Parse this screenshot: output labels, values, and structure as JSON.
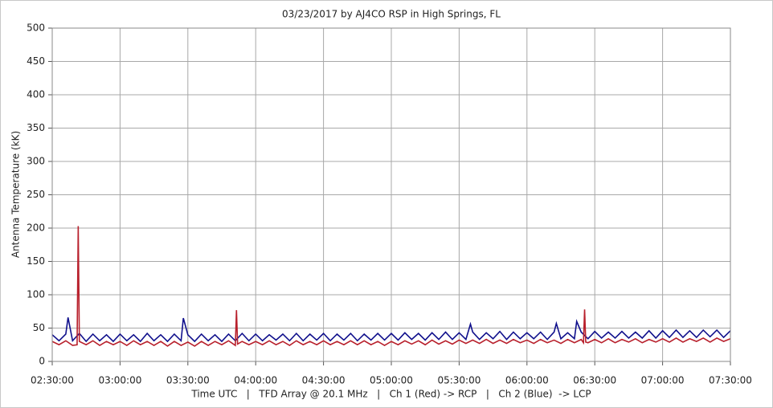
{
  "chart_data": {
    "type": "line",
    "title": "03/23/2017  by  AJ4CO RSP  in  High Springs, FL",
    "ylabel": "Antenna Temperature (kK)",
    "xlabel": "Time UTC   |   TFD Array @ 20.1 MHz   |   Ch 1 (Red) -> RCP   |   Ch 2 (Blue)  -> LCP",
    "xlim": [
      "02:30:00",
      "07:30:00"
    ],
    "xticks": [
      "02:30:00",
      "03:00:00",
      "03:30:00",
      "04:00:00",
      "04:30:00",
      "05:00:00",
      "05:30:00",
      "06:00:00",
      "06:30:00",
      "07:00:00",
      "07:30:00"
    ],
    "ylim": [
      0,
      500
    ],
    "yticks": [
      0,
      50,
      100,
      150,
      200,
      250,
      300,
      350,
      400,
      450,
      500
    ],
    "grid": true,
    "series": [
      {
        "color": "#10108c",
        "x": [
          "02:30:00",
          "02:33:00",
          "02:36:00",
          "02:37:00",
          "02:39:00",
          "02:42:00",
          "02:45:00",
          "02:48:00",
          "02:51:00",
          "02:54:00",
          "02:57:00",
          "03:00:00",
          "03:03:00",
          "03:06:00",
          "03:09:00",
          "03:12:00",
          "03:15:00",
          "03:18:00",
          "03:21:00",
          "03:24:00",
          "03:27:00",
          "03:28:00",
          "03:30:00",
          "03:33:00",
          "03:36:00",
          "03:39:00",
          "03:42:00",
          "03:45:00",
          "03:48:00",
          "03:51:00",
          "03:54:00",
          "03:57:00",
          "04:00:00",
          "04:03:00",
          "04:06:00",
          "04:09:00",
          "04:12:00",
          "04:15:00",
          "04:18:00",
          "04:21:00",
          "04:24:00",
          "04:27:00",
          "04:30:00",
          "04:33:00",
          "04:36:00",
          "04:39:00",
          "04:42:00",
          "04:45:00",
          "04:48:00",
          "04:51:00",
          "04:54:00",
          "04:57:00",
          "05:00:00",
          "05:03:00",
          "05:06:00",
          "05:09:00",
          "05:12:00",
          "05:15:00",
          "05:18:00",
          "05:21:00",
          "05:24:00",
          "05:27:00",
          "05:30:00",
          "05:33:00",
          "05:35:00",
          "05:36:00",
          "05:39:00",
          "05:42:00",
          "05:45:00",
          "05:48:00",
          "05:51:00",
          "05:54:00",
          "05:57:00",
          "06:00:00",
          "06:03:00",
          "06:06:00",
          "06:09:00",
          "06:12:00",
          "06:13:00",
          "06:15:00",
          "06:18:00",
          "06:21:00",
          "06:22:00",
          "06:24:00",
          "06:27:00",
          "06:30:00",
          "06:33:00",
          "06:36:00",
          "06:39:00",
          "06:42:00",
          "06:45:00",
          "06:48:00",
          "06:51:00",
          "06:54:00",
          "06:57:00",
          "07:00:00",
          "07:03:00",
          "07:06:00",
          "07:09:00",
          "07:12:00",
          "07:15:00",
          "07:18:00",
          "07:21:00",
          "07:24:00",
          "07:27:00",
          "07:30:00"
        ],
        "values": [
          40,
          31,
          41,
          66,
          31,
          42,
          30,
          41,
          31,
          40,
          30,
          41,
          31,
          40,
          30,
          42,
          31,
          40,
          30,
          41,
          31,
          65,
          40,
          30,
          41,
          31,
          40,
          30,
          41,
          31,
          42,
          31,
          41,
          31,
          40,
          32,
          41,
          31,
          42,
          31,
          41,
          32,
          42,
          31,
          41,
          32,
          42,
          31,
          41,
          32,
          42,
          32,
          42,
          32,
          43,
          33,
          42,
          32,
          43,
          33,
          44,
          33,
          43,
          33,
          56,
          44,
          33,
          43,
          34,
          45,
          33,
          44,
          34,
          43,
          34,
          44,
          33,
          44,
          57,
          34,
          43,
          34,
          60,
          44,
          34,
          45,
          35,
          44,
          35,
          45,
          35,
          44,
          35,
          46,
          35,
          46,
          36,
          47,
          36,
          46,
          36,
          47,
          37,
          47,
          36,
          46
        ]
      },
      {
        "color": "#b8202c",
        "x": [
          "02:30:00",
          "02:33:00",
          "02:36:00",
          "02:39:00",
          "02:41:00",
          "02:41:30",
          "02:42:00",
          "02:45:00",
          "02:48:00",
          "02:51:00",
          "02:54:00",
          "02:57:00",
          "03:00:00",
          "03:03:00",
          "03:06:00",
          "03:09:00",
          "03:12:00",
          "03:15:00",
          "03:18:00",
          "03:21:00",
          "03:24:00",
          "03:27:00",
          "03:30:00",
          "03:33:00",
          "03:36:00",
          "03:39:00",
          "03:42:00",
          "03:45:00",
          "03:48:00",
          "03:51:00",
          "03:51:30",
          "03:52:00",
          "03:54:00",
          "03:57:00",
          "04:00:00",
          "04:03:00",
          "04:06:00",
          "04:09:00",
          "04:12:00",
          "04:15:00",
          "04:18:00",
          "04:21:00",
          "04:24:00",
          "04:27:00",
          "04:30:00",
          "04:33:00",
          "04:36:00",
          "04:39:00",
          "04:42:00",
          "04:45:00",
          "04:48:00",
          "04:51:00",
          "04:54:00",
          "04:57:00",
          "05:00:00",
          "05:03:00",
          "05:06:00",
          "05:09:00",
          "05:12:00",
          "05:15:00",
          "05:18:00",
          "05:21:00",
          "05:24:00",
          "05:27:00",
          "05:30:00",
          "05:33:00",
          "05:36:00",
          "05:39:00",
          "05:42:00",
          "05:45:00",
          "05:48:00",
          "05:51:00",
          "05:54:00",
          "05:57:00",
          "06:00:00",
          "06:03:00",
          "06:06:00",
          "06:09:00",
          "06:12:00",
          "06:15:00",
          "06:18:00",
          "06:21:00",
          "06:24:00",
          "06:25:00",
          "06:25:30",
          "06:26:00",
          "06:27:00",
          "06:30:00",
          "06:33:00",
          "06:36:00",
          "06:39:00",
          "06:42:00",
          "06:45:00",
          "06:48:00",
          "06:51:00",
          "06:54:00",
          "06:57:00",
          "07:00:00",
          "07:03:00",
          "07:06:00",
          "07:09:00",
          "07:12:00",
          "07:15:00",
          "07:18:00",
          "07:21:00",
          "07:24:00",
          "07:27:00",
          "07:30:00"
        ],
        "values": [
          30,
          25,
          31,
          24,
          25,
          203,
          30,
          25,
          31,
          24,
          30,
          25,
          30,
          24,
          31,
          25,
          30,
          24,
          30,
          23,
          30,
          24,
          29,
          23,
          30,
          24,
          30,
          25,
          31,
          24,
          77,
          26,
          30,
          25,
          30,
          25,
          31,
          25,
          30,
          24,
          31,
          25,
          30,
          25,
          31,
          25,
          30,
          25,
          31,
          25,
          31,
          25,
          30,
          24,
          30,
          25,
          31,
          26,
          31,
          25,
          32,
          26,
          31,
          26,
          32,
          27,
          32,
          27,
          33,
          27,
          32,
          27,
          33,
          28,
          32,
          27,
          33,
          28,
          32,
          27,
          33,
          28,
          33,
          28,
          78,
          29,
          28,
          33,
          28,
          34,
          28,
          33,
          29,
          34,
          28,
          33,
          29,
          34,
          29,
          35,
          29,
          34,
          30,
          35,
          29,
          35,
          30,
          34
        ]
      }
    ]
  }
}
